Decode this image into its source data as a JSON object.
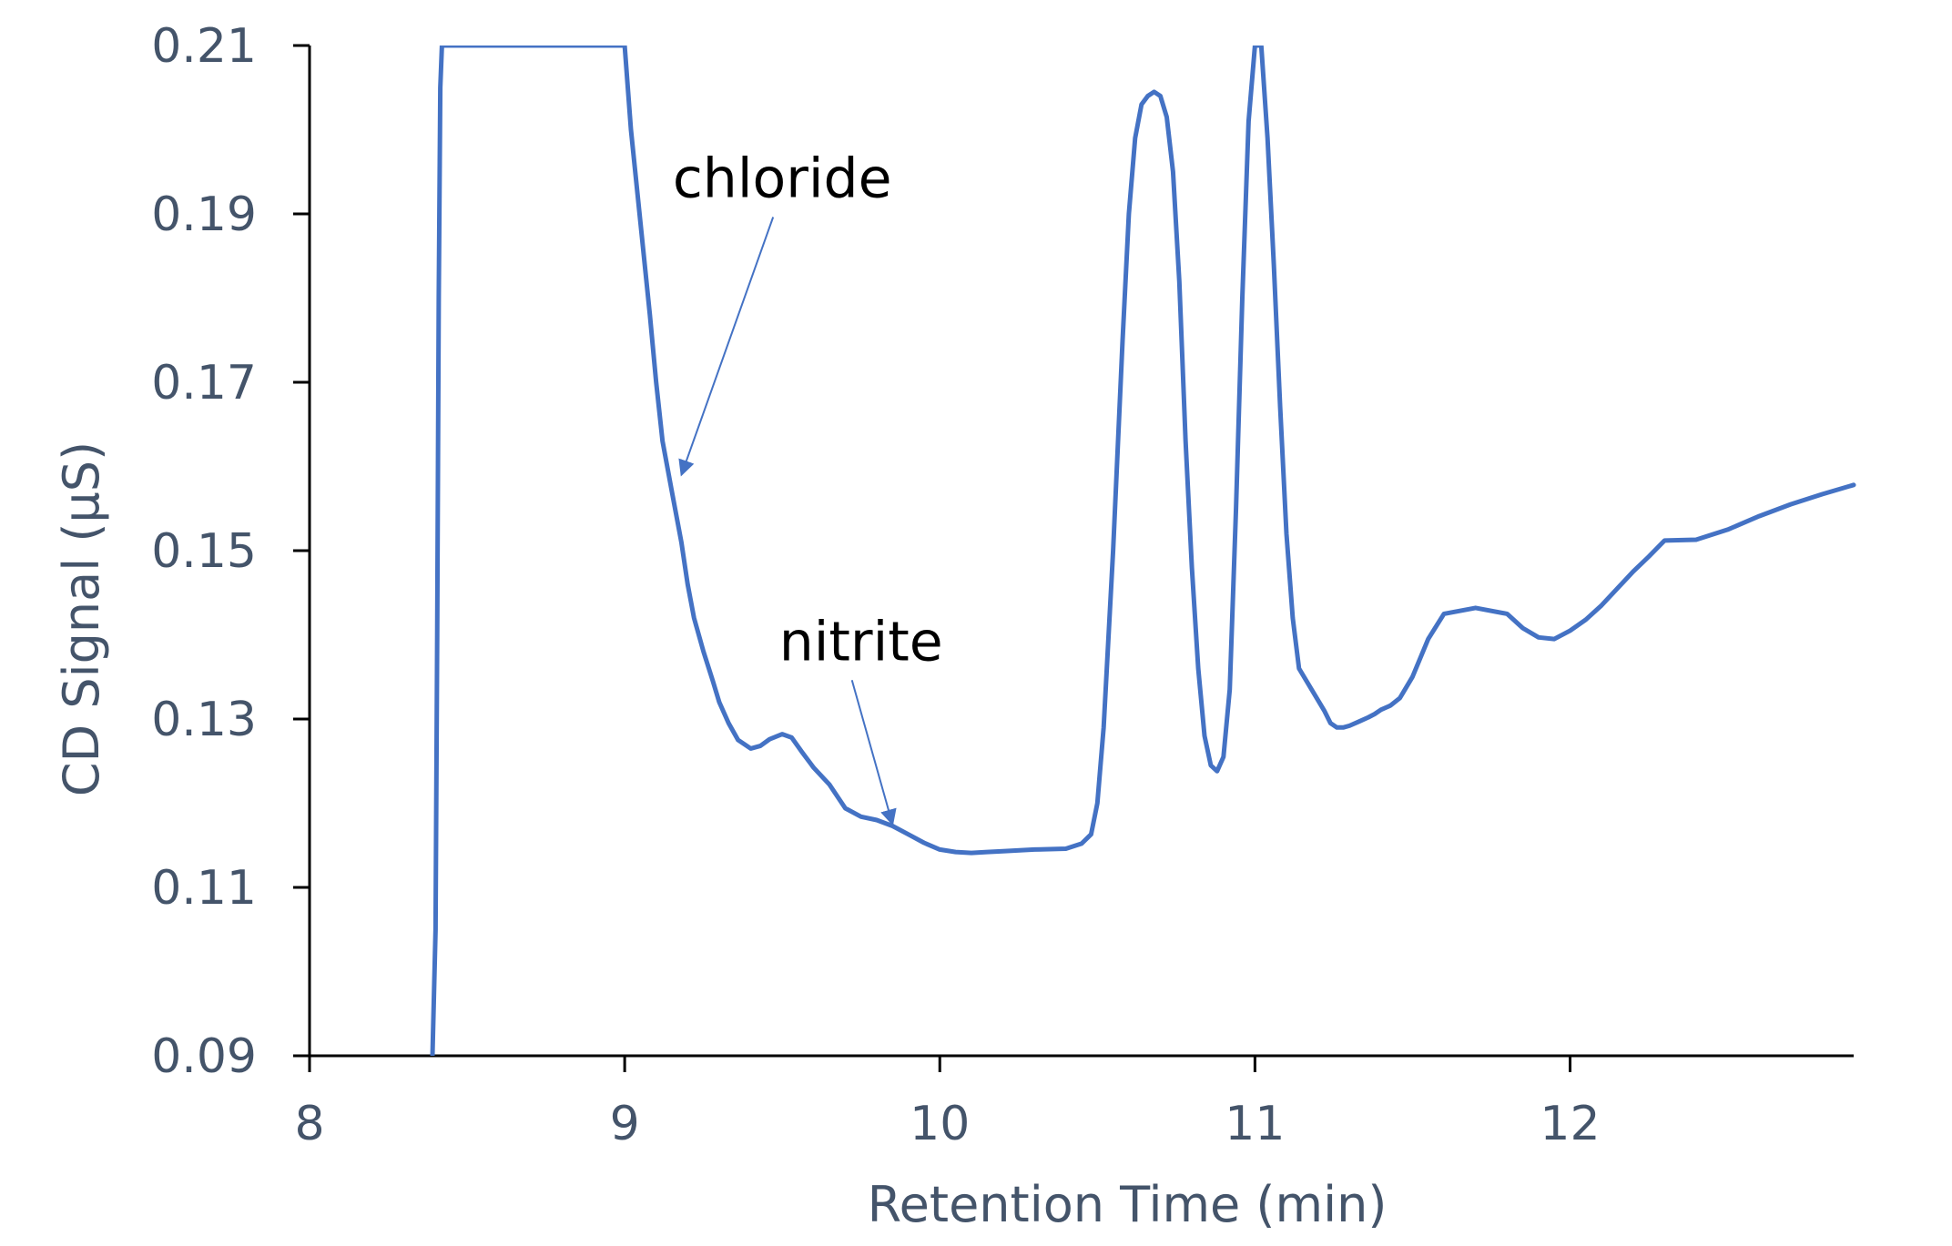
{
  "chart_data": {
    "type": "line",
    "title": "",
    "xlabel": "Retention Time (min)",
    "ylabel": "CD Signal (µS)",
    "xlim": [
      8,
      12.9
    ],
    "ylim": [
      0.09,
      0.21
    ],
    "x_ticks": [
      8,
      9,
      10,
      11,
      12
    ],
    "x_tick_labels": [
      "8",
      "9",
      "10",
      "11",
      "12"
    ],
    "y_ticks": [
      0.09,
      0.11,
      0.13,
      0.15,
      0.17,
      0.19,
      0.21
    ],
    "y_tick_labels": [
      "0.09",
      "0.11",
      "0.13",
      "0.15",
      "0.17",
      "0.19",
      "0.21"
    ],
    "grid": false,
    "legend": "none",
    "series_color": "#4472c4",
    "axis_color": "#000000",
    "label_color": "#44546a",
    "series": [
      {
        "x": [
          8.39,
          8.4,
          8.405,
          8.41,
          8.415,
          8.42,
          9.0,
          9.02,
          9.05,
          9.08,
          9.1,
          9.12,
          9.15,
          9.18,
          9.2,
          9.22,
          9.25,
          9.28,
          9.3,
          9.33,
          9.36,
          9.4,
          9.43,
          9.46,
          9.5,
          9.53,
          9.56,
          9.6,
          9.65,
          9.7,
          9.75,
          9.8,
          9.85,
          9.9,
          9.95,
          10.0,
          10.05,
          10.1,
          10.15,
          10.2,
          10.3,
          10.4,
          10.45,
          10.48,
          10.5,
          10.52,
          10.55,
          10.58,
          10.6,
          10.62,
          10.64,
          10.66,
          10.68,
          10.7,
          10.72,
          10.74,
          10.76,
          10.78,
          10.8,
          10.82,
          10.84,
          10.86,
          10.88,
          10.9,
          10.92,
          10.94,
          10.96,
          10.98,
          11.0,
          11.02,
          11.04,
          11.06,
          11.08,
          11.1,
          11.12,
          11.14,
          11.22,
          11.24,
          11.26,
          11.28,
          11.3,
          11.33,
          11.36,
          11.38,
          11.4,
          11.43,
          11.46,
          11.5,
          11.55,
          11.6,
          11.7,
          11.8,
          11.85,
          11.9,
          11.95,
          12.0,
          12.05,
          12.1,
          12.15,
          12.2,
          12.25,
          12.3,
          12.4,
          12.5,
          12.6,
          12.7,
          12.8,
          12.9
        ],
        "y": [
          0.09,
          0.105,
          0.14,
          0.18,
          0.205,
          0.21,
          0.21,
          0.2,
          0.189,
          0.178,
          0.17,
          0.163,
          0.157,
          0.151,
          0.146,
          0.142,
          0.138,
          0.1345,
          0.132,
          0.1295,
          0.1275,
          0.1265,
          0.1268,
          0.1276,
          0.1282,
          0.1278,
          0.1262,
          0.1242,
          0.1222,
          0.1194,
          0.1184,
          0.118,
          0.1173,
          0.1163,
          0.1153,
          0.1145,
          0.1142,
          0.1141,
          0.1142,
          0.1143,
          0.1145,
          0.1146,
          0.1152,
          0.1163,
          0.12,
          0.129,
          0.15,
          0.175,
          0.19,
          0.199,
          0.203,
          0.204,
          0.2045,
          0.204,
          0.2015,
          0.195,
          0.182,
          0.163,
          0.148,
          0.136,
          0.128,
          0.1245,
          0.1238,
          0.1255,
          0.1335,
          0.155,
          0.18,
          0.201,
          0.21,
          0.21,
          0.199,
          0.184,
          0.167,
          0.152,
          0.142,
          0.136,
          0.131,
          0.1295,
          0.129,
          0.129,
          0.1292,
          0.1297,
          0.1302,
          0.1306,
          0.1311,
          0.1316,
          0.1325,
          0.135,
          0.1395,
          0.1425,
          0.1432,
          0.1425,
          0.1408,
          0.1397,
          0.1395,
          0.1405,
          0.1418,
          0.1435,
          0.1455,
          0.1475,
          0.1493,
          0.1512,
          0.1513,
          0.1525,
          0.1541,
          0.1555,
          0.1567,
          0.1578
        ]
      }
    ],
    "annotations": [
      {
        "text": "chloride",
        "x": 9.5,
        "y": 0.192,
        "arrow_to": [
          9.18,
          0.159
        ]
      },
      {
        "text": "nitrite",
        "x": 9.75,
        "y": 0.137,
        "arrow_to": [
          9.85,
          0.1175
        ]
      }
    ]
  }
}
